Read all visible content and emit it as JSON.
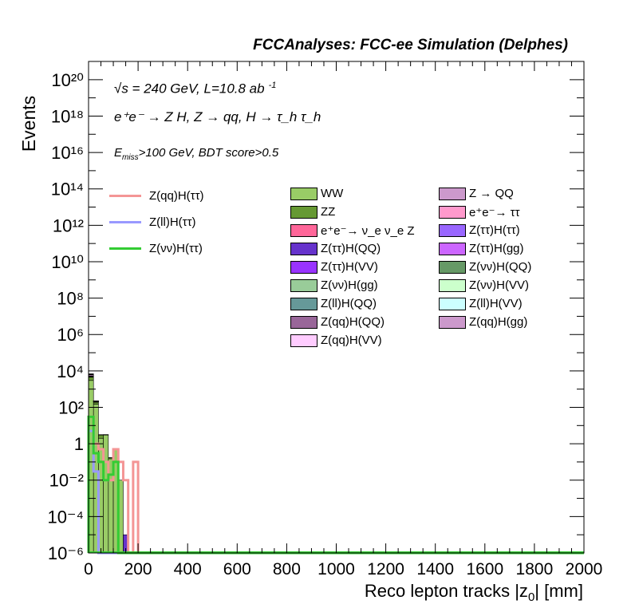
{
  "header": {
    "title": "FCCAnalyses: FCC-ee Simulation (Delphes)"
  },
  "annotations": {
    "line1": "√s = 240 GeV, L=10.8 ab",
    "line1_sup": "-1",
    "line2": "e⁺e⁻ → Z H, Z → qq, H → τ_h τ_h",
    "line3_pre": "E",
    "line3_sub": "miss",
    "line3_post": ">100 GeV, BDT score>0.5"
  },
  "chart_data": {
    "type": "bar",
    "stacked": true,
    "log_y": true,
    "xlabel": "Reco lepton tracks |z",
    "xlabel_sub": "0",
    "xlabel_post": "| [mm]",
    "ylabel": "Events",
    "xlim": [
      0,
      2000
    ],
    "ylim": [
      1e-06,
      1e+21
    ],
    "x_ticks": [
      "0",
      "200",
      "400",
      "600",
      "800",
      "1000",
      "1200",
      "1400",
      "1600",
      "1800",
      "2000"
    ],
    "y_ticks": [
      "10⁻⁶",
      "10⁻⁴",
      "10⁻²",
      "1",
      "10²",
      "10⁴",
      "10⁶",
      "10⁸",
      "10¹⁰",
      "10¹²",
      "10¹⁴",
      "10¹⁶",
      "10¹⁸",
      "10²⁰"
    ],
    "bin_width": 20,
    "background_stack": [
      {
        "name": "WW",
        "color": "#99cc66",
        "bins": [
          [
            0,
            3000
          ],
          [
            20,
            150
          ],
          [
            40,
            2
          ],
          [
            60,
            3
          ],
          [
            80,
            0.15
          ],
          [
            100,
            0.5
          ],
          [
            120,
            0.01
          ]
        ]
      },
      {
        "name": "ZZ",
        "color": "#669933",
        "bins": [
          [
            0,
            1500
          ],
          [
            20,
            40
          ],
          [
            40,
            1
          ],
          [
            60,
            0.2
          ],
          [
            80,
            0.02
          ]
        ]
      },
      {
        "name": "Z(ττ)H(QQ)",
        "color": "#6633cc",
        "bins": [
          [
            0,
            200
          ],
          [
            20,
            5
          ],
          [
            40,
            0.01
          ],
          [
            80,
            0.003
          ],
          [
            100,
            2e-05
          ],
          [
            140,
            1e-05
          ]
        ]
      },
      {
        "name": "Z(ττ)H(VV)",
        "color": "#9933ff",
        "bins": [
          [
            0,
            100
          ],
          [
            20,
            2
          ],
          [
            40,
            0.002
          ]
        ]
      },
      {
        "name": "Z(νν)H(QQ)",
        "color": "#669966",
        "bins": [
          [
            0,
            300
          ],
          [
            20,
            10
          ],
          [
            40,
            0.1
          ]
        ]
      },
      {
        "name": "Z(νν)H(gg)",
        "color": "#99cc99",
        "bins": [
          [
            0,
            150
          ],
          [
            20,
            4
          ]
        ]
      },
      {
        "name": "Z(ll)H(QQ)",
        "color": "#669999",
        "bins": [
          [
            0,
            50
          ],
          [
            20,
            0.5
          ]
        ]
      },
      {
        "name": "Z(qq)H(QQ)",
        "color": "#996699",
        "bins": [
          [
            0,
            40
          ],
          [
            20,
            0.3
          ]
        ]
      },
      {
        "name": "Z(qq)H(VV)",
        "color": "#ffccff",
        "bins": [
          [
            0,
            20
          ],
          [
            20,
            0.2
          ]
        ]
      },
      {
        "name": "Z → QQ",
        "color": "#cc99cc",
        "bins": [
          [
            0,
            800
          ],
          [
            20,
            6
          ],
          [
            40,
            0.05
          ]
        ]
      },
      {
        "name": "e⁺e⁻→ ττ",
        "color": "#ff99cc",
        "bins": [
          [
            0,
            400
          ],
          [
            20,
            3
          ]
        ]
      },
      {
        "name": "e⁺e⁻→ ν_e ν_e Z",
        "color": "#ff6699",
        "bins": [
          [
            0,
            60
          ],
          [
            20,
            0.4
          ]
        ]
      },
      {
        "name": "Z(ττ)H(ττ)",
        "color": "#9966ff",
        "bins": [
          [
            0,
            80
          ],
          [
            20,
            1
          ]
        ]
      },
      {
        "name": "Z(ττ)H(gg)",
        "color": "#cc66ff",
        "bins": [
          [
            0,
            70
          ],
          [
            20,
            0.8
          ]
        ]
      },
      {
        "name": "Z(νν)H(VV)",
        "color": "#ccffcc",
        "bins": [
          [
            0,
            30
          ],
          [
            20,
            0.3
          ]
        ]
      },
      {
        "name": "Z(ll)H(VV)",
        "color": "#ccffff",
        "bins": [
          [
            0,
            10
          ],
          [
            20,
            0.1
          ]
        ]
      },
      {
        "name": "Z(qq)H(gg)",
        "color": "#cc99cc",
        "bins": [
          [
            0,
            25
          ],
          [
            20,
            0.2
          ]
        ]
      }
    ],
    "signals": [
      {
        "name": "Z(qq)H(ττ)",
        "color": "#f49595",
        "bins": [
          [
            0,
            30
          ],
          [
            20,
            1
          ],
          [
            40,
            0.5
          ],
          [
            60,
            0.1
          ],
          [
            80,
            0.01
          ],
          [
            100,
            0.5
          ],
          [
            120,
            0.1
          ],
          [
            140,
            0.01
          ],
          [
            160,
            1e-06
          ],
          [
            180,
            0.1
          ],
          [
            200,
            1e-06
          ]
        ]
      },
      {
        "name": "Z(ll)H(ττ)",
        "color": "#9999ff",
        "bins": [
          [
            0,
            5
          ],
          [
            20,
            0.03
          ],
          [
            40,
            1e-06
          ]
        ]
      },
      {
        "name": "Z(νν)H(ττ)",
        "color": "#33cc33",
        "bins": [
          [
            0,
            30
          ],
          [
            20,
            0.3
          ],
          [
            40,
            0.1
          ],
          [
            60,
            0.01
          ],
          [
            80,
            0.02
          ],
          [
            100,
            0.1
          ],
          [
            120,
            1e-06
          ]
        ]
      }
    ],
    "legend_placement": "upper-right-center"
  },
  "legend": {
    "signals": [
      {
        "label": "Z(qq)H(ττ)",
        "color": "#f49595"
      },
      {
        "label": "Z(ll)H(ττ)",
        "color": "#9999ff"
      },
      {
        "label": "Z(νν)H(ττ)",
        "color": "#33cc33"
      }
    ],
    "col1": [
      {
        "label": "WW",
        "color": "#99cc66"
      },
      {
        "label": "ZZ",
        "color": "#669933"
      },
      {
        "label": "e⁺e⁻→ ν_e ν_e Z",
        "color": "#ff6699"
      },
      {
        "label": "Z(ττ)H(QQ)",
        "color": "#6633cc"
      },
      {
        "label": "Z(ττ)H(VV)",
        "color": "#9933ff"
      },
      {
        "label": "Z(νν)H(gg)",
        "color": "#99cc99"
      },
      {
        "label": "Z(ll)H(QQ)",
        "color": "#669999"
      },
      {
        "label": "Z(qq)H(QQ)",
        "color": "#996699"
      },
      {
        "label": "Z(qq)H(VV)",
        "color": "#ffccff"
      }
    ],
    "col2": [
      {
        "label": "Z → QQ",
        "color": "#cc99cc"
      },
      {
        "label": "e⁺e⁻→ ττ",
        "color": "#ff99cc"
      },
      {
        "label": "Z(ττ)H(ττ)",
        "color": "#9966ff"
      },
      {
        "label": "Z(ττ)H(gg)",
        "color": "#cc66ff"
      },
      {
        "label": "Z(νν)H(QQ)",
        "color": "#669966"
      },
      {
        "label": "Z(νν)H(VV)",
        "color": "#ccffcc"
      },
      {
        "label": "Z(ll)H(VV)",
        "color": "#ccffff"
      },
      {
        "label": "Z(qq)H(gg)",
        "color": "#cc99cc"
      }
    ]
  }
}
